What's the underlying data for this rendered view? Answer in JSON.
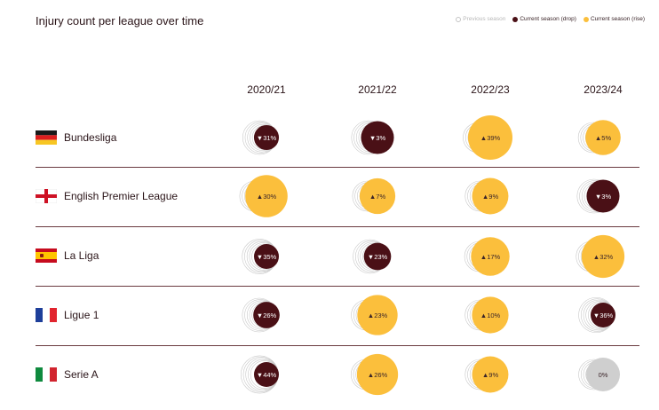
{
  "title": "Injury count per league over time",
  "legend": {
    "previous": "Previous season",
    "drop": "Current season (drop)",
    "rise": "Current season (rise)"
  },
  "colors": {
    "drop": "#4a1016",
    "rise": "#fbbf3c",
    "neutral": "#cfcfcf",
    "previous_ring": "#c9c9c9"
  },
  "chart_data": {
    "type": "bubble-table",
    "title": "Injury count per league over time",
    "seasons": [
      "2020/21",
      "2021/22",
      "2022/23",
      "2023/24"
    ],
    "leagues": [
      "Bundesliga",
      "English Premier League",
      "La Liga",
      "Ligue 1",
      "Serie A"
    ],
    "flags": [
      "germany-flag",
      "england-flag",
      "spain-flag",
      "france-flag",
      "italy-flag"
    ],
    "cells": [
      [
        {
          "label": "▼31%",
          "direction": "drop",
          "change_pct": -31
        },
        {
          "label": "▼3%",
          "direction": "drop",
          "change_pct": -3
        },
        {
          "label": "▲39%",
          "direction": "rise",
          "change_pct": 39
        },
        {
          "label": "▲5%",
          "direction": "rise",
          "change_pct": 5
        }
      ],
      [
        {
          "label": "▲30%",
          "direction": "rise",
          "change_pct": 30
        },
        {
          "label": "▲7%",
          "direction": "rise",
          "change_pct": 7
        },
        {
          "label": "▲9%",
          "direction": "rise",
          "change_pct": 9
        },
        {
          "label": "▼3%",
          "direction": "drop",
          "change_pct": -3
        }
      ],
      [
        {
          "label": "▼35%",
          "direction": "drop",
          "change_pct": -35
        },
        {
          "label": "▼23%",
          "direction": "drop",
          "change_pct": -23
        },
        {
          "label": "▲17%",
          "direction": "rise",
          "change_pct": 17
        },
        {
          "label": "▲32%",
          "direction": "rise",
          "change_pct": 32
        }
      ],
      [
        {
          "label": "▼26%",
          "direction": "drop",
          "change_pct": -26
        },
        {
          "label": "▲23%",
          "direction": "rise",
          "change_pct": 23
        },
        {
          "label": "▲10%",
          "direction": "rise",
          "change_pct": 10
        },
        {
          "label": "▼36%",
          "direction": "drop",
          "change_pct": -36
        }
      ],
      [
        {
          "label": "▼44%",
          "direction": "drop",
          "change_pct": -44
        },
        {
          "label": "▲26%",
          "direction": "rise",
          "change_pct": 26
        },
        {
          "label": "▲9%",
          "direction": "rise",
          "change_pct": 9
        },
        {
          "label": "0%",
          "direction": "none",
          "change_pct": 0
        }
      ]
    ]
  }
}
